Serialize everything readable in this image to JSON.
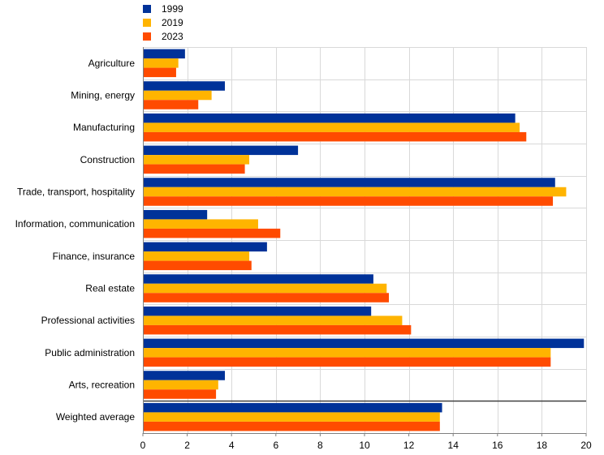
{
  "chart_data": {
    "type": "bar",
    "orientation": "horizontal",
    "title": "",
    "xlabel": "",
    "ylabel": "",
    "xlim": [
      0,
      20
    ],
    "x_ticks": [
      0,
      2,
      4,
      6,
      8,
      10,
      12,
      14,
      16,
      18,
      20
    ],
    "grid": true,
    "legend_position": "top-left",
    "categories": [
      "Agriculture",
      "Mining, energy",
      "Manufacturing",
      "Construction",
      "Trade, transport, hospitality",
      "Information, communication",
      "Finance, insurance",
      "Real estate",
      "Professional activities",
      "Public administration",
      "Arts, recreation",
      "Weighted average"
    ],
    "series": [
      {
        "name": "1999",
        "color": "#003299",
        "values": [
          1.9,
          3.7,
          16.8,
          7.0,
          18.6,
          2.9,
          5.6,
          10.4,
          10.3,
          19.9,
          3.7,
          13.5
        ]
      },
      {
        "name": "2019",
        "color": "#FFB400",
        "values": [
          1.6,
          3.1,
          17.0,
          4.8,
          19.1,
          5.2,
          4.8,
          11.0,
          11.7,
          18.4,
          3.4,
          13.4
        ]
      },
      {
        "name": "2023",
        "color": "#FF4B00",
        "values": [
          1.5,
          2.5,
          17.3,
          4.6,
          18.5,
          6.2,
          4.9,
          11.1,
          12.1,
          18.4,
          3.3,
          13.4
        ]
      }
    ],
    "separator_before_category": "Weighted average"
  }
}
